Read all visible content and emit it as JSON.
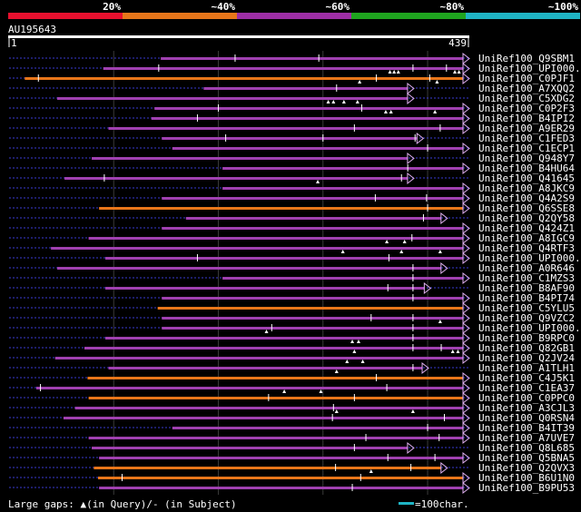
{
  "header": {
    "pct_labels": [
      "20%",
      "~40%",
      "~60%",
      "~80%",
      "~100%"
    ],
    "band_colors": [
      "#e8102e",
      "#e8761a",
      "#9e2ea6",
      "#1fa51f",
      "#1fb4c4"
    ],
    "query_name": "AU195643",
    "ruler_start": "1",
    "ruler_end": "439"
  },
  "colors": {
    "purple": "#a040b0",
    "orange": "#e8761a",
    "dotted": "#3a3ad0",
    "grid": "#3a3a3a",
    "teal": "#1fb4c4"
  },
  "query_length": 439,
  "hits": [
    {
      "label": "UniRef100_Q9SBM1",
      "start": 145,
      "end": 439,
      "color": "purple",
      "lead": 0,
      "tri": [],
      "ticks": [
        216,
        296
      ]
    },
    {
      "label": "UniRef100_UPI000...",
      "start": 90,
      "end": 439,
      "color": "purple",
      "lead": 0,
      "tri": [
        364,
        368,
        372,
        426,
        430
      ],
      "ticks": [
        143,
        386,
        418
      ]
    },
    {
      "label": "UniRef100_C0PJF1",
      "start": 15,
      "end": 439,
      "color": "orange",
      "lead": 0,
      "tri": [
        335,
        409
      ],
      "ticks": [
        28,
        351,
        402
      ]
    },
    {
      "label": "UniRef100_A7XQQ2",
      "start": 186,
      "end": 386,
      "color": "purple",
      "lead": 0,
      "tri": [],
      "ticks": [
        313
      ]
    },
    {
      "label": "UniRef100_C5XDG2",
      "start": 46,
      "end": 386,
      "color": "purple",
      "lead": 0,
      "tri": [
        305,
        310,
        320,
        333
      ],
      "ticks": []
    },
    {
      "label": "UniRef100_C0P2F3",
      "start": 139,
      "end": 439,
      "color": "purple",
      "lead": 0,
      "tri": [
        360,
        365,
        407
      ],
      "ticks": [
        200,
        337
      ]
    },
    {
      "label": "UniRef100_B4IPI2",
      "start": 136,
      "end": 439,
      "color": "purple",
      "lead": 0,
      "tri": [],
      "ticks": [
        180
      ]
    },
    {
      "label": "UniRef100_A9ER29",
      "start": 95,
      "end": 439,
      "color": "purple",
      "lead": 0,
      "tri": [],
      "ticks": [
        330,
        412
      ]
    },
    {
      "label": "UniRef100_C1FED3",
      "start": 146,
      "end": 395,
      "color": "purple",
      "lead": 0,
      "tri": [],
      "ticks": [
        207,
        300,
        388
      ]
    },
    {
      "label": "UniRef100_C1ECP1",
      "start": 156,
      "end": 439,
      "color": "purple",
      "lead": 0,
      "tri": [],
      "ticks": [
        400
      ]
    },
    {
      "label": "UniRef100_Q948Y7",
      "start": 79,
      "end": 386,
      "color": "purple",
      "lead": 0,
      "tri": [],
      "ticks": []
    },
    {
      "label": "UniRef100_B4HU64",
      "start": 204,
      "end": 439,
      "color": "purple",
      "lead": 0,
      "tri": [],
      "ticks": [
        381
      ]
    },
    {
      "label": "UniRef100_Q41645",
      "start": 53,
      "end": 386,
      "color": "purple",
      "lead": 0,
      "tri": [
        295
      ],
      "ticks": [
        91,
        375
      ]
    },
    {
      "label": "UniRef100_A8JKC9",
      "start": 204,
      "end": 439,
      "color": "purple",
      "lead": 0,
      "tri": [],
      "ticks": []
    },
    {
      "label": "UniRef100_Q4A2S9",
      "start": 146,
      "end": 439,
      "color": "purple",
      "lead": 0,
      "tri": [],
      "ticks": [
        350,
        399
      ]
    },
    {
      "label": "UniRef100_Q6SSE8",
      "start": 86,
      "end": 439,
      "color": "orange",
      "lead": 1,
      "lead_end": 146,
      "tri": [],
      "ticks": [
        400
      ]
    },
    {
      "label": "UniRef100_Q2QY58",
      "start": 169,
      "end": 418,
      "color": "purple",
      "lead": 0,
      "tri": [],
      "ticks": [
        396
      ]
    },
    {
      "label": "UniRef100_Q424Z1",
      "start": 146,
      "end": 439,
      "color": "purple",
      "lead": 0,
      "tri": [],
      "ticks": []
    },
    {
      "label": "UniRef100_A8IGC9",
      "start": 76,
      "end": 439,
      "color": "purple",
      "lead": 0,
      "tri": [
        361,
        378
      ],
      "ticks": [
        385
      ]
    },
    {
      "label": "UniRef100_Q4RTF3",
      "start": 40,
      "end": 439,
      "color": "purple",
      "lead": 0,
      "tri": [
        319,
        375,
        412
      ],
      "ticks": []
    },
    {
      "label": "UniRef100_UPI000...",
      "start": 92,
      "end": 439,
      "color": "purple",
      "lead": 0,
      "tri": [],
      "ticks": [
        180,
        363
      ]
    },
    {
      "label": "UniRef100_A0R646",
      "start": 46,
      "end": 418,
      "color": "purple",
      "lead": 0,
      "tri": [],
      "ticks": [
        386
      ]
    },
    {
      "label": "UniRef100_C1MZS3",
      "start": 204,
      "end": 439,
      "color": "purple",
      "lead": 0,
      "tri": [],
      "ticks": [
        386
      ]
    },
    {
      "label": "UniRef100_B8AF90",
      "start": 92,
      "end": 402,
      "color": "purple",
      "lead": 0,
      "tri": [],
      "ticks": [
        362,
        386
      ]
    },
    {
      "label": "UniRef100_B4PI74",
      "start": 146,
      "end": 439,
      "color": "purple",
      "lead": 0,
      "tri": [],
      "ticks": [
        386
      ]
    },
    {
      "label": "UniRef100_C5YLU5",
      "start": 142,
      "end": 439,
      "color": "orange",
      "lead": 0,
      "tri": [],
      "ticks": []
    },
    {
      "label": "UniRef100_Q9VZC2",
      "start": 146,
      "end": 439,
      "color": "purple",
      "lead": 0,
      "tri": [
        412
      ],
      "ticks": [
        346,
        386
      ]
    },
    {
      "label": "UniRef100_UPI000...",
      "start": 146,
      "end": 439,
      "color": "purple",
      "lead": 0,
      "tri": [
        246
      ],
      "ticks": [
        251,
        386
      ]
    },
    {
      "label": "UniRef100_B9RPC0",
      "start": 92,
      "end": 439,
      "color": "purple",
      "lead": 0,
      "tri": [
        328,
        334
      ],
      "ticks": [
        386
      ]
    },
    {
      "label": "UniRef100_Q82GB1",
      "start": 72,
      "end": 439,
      "color": "purple",
      "lead": 0,
      "tri": [
        330,
        424,
        429
      ],
      "ticks": [
        386,
        413
      ]
    },
    {
      "label": "UniRef100_Q2JV24",
      "start": 44,
      "end": 439,
      "color": "purple",
      "lead": 0,
      "tri": [
        323,
        338
      ],
      "ticks": []
    },
    {
      "label": "UniRef100_A1TLH1",
      "start": 95,
      "end": 400,
      "color": "purple",
      "lead": 0,
      "tri": [
        313
      ],
      "ticks": [
        386
      ]
    },
    {
      "label": "UniRef100_C4J5K1",
      "start": 75,
      "end": 439,
      "color": "orange",
      "lead": 0,
      "tri": [],
      "ticks": [
        351
      ]
    },
    {
      "label": "UniRef100_C1EA37",
      "start": 26,
      "end": 439,
      "color": "purple",
      "lead": 0,
      "tri": [
        263,
        298
      ],
      "ticks": [
        30,
        361
      ]
    },
    {
      "label": "UniRef100_C0PPC0",
      "start": 76,
      "end": 439,
      "color": "orange",
      "lead": 0,
      "tri": [],
      "ticks": [
        248,
        330
      ]
    },
    {
      "label": "UniRef100_A3CJL3",
      "start": 63,
      "end": 439,
      "color": "purple",
      "lead": 0,
      "tri": [
        313,
        386
      ],
      "ticks": [
        310
      ]
    },
    {
      "label": "UniRef100_Q0RSN4",
      "start": 52,
      "end": 439,
      "color": "purple",
      "lead": 0,
      "tri": [],
      "ticks": [
        309,
        416
      ]
    },
    {
      "label": "UniRef100_B4IT39",
      "start": 156,
      "end": 439,
      "color": "purple",
      "lead": 0,
      "tri": [],
      "ticks": [
        400
      ]
    },
    {
      "label": "UniRef100_A7UVE7",
      "start": 76,
      "end": 439,
      "color": "purple",
      "lead": 0,
      "tri": [],
      "ticks": [
        341,
        411
      ]
    },
    {
      "label": "UniRef100_Q8L685",
      "start": 79,
      "end": 386,
      "color": "purple",
      "lead": 0,
      "tri": [],
      "ticks": [
        330
      ]
    },
    {
      "label": "UniRef100_Q5BNA5",
      "start": 86,
      "end": 439,
      "color": "purple",
      "lead": 0,
      "tri": [],
      "ticks": [
        362,
        407
      ]
    },
    {
      "label": "UniRef100_Q2QVX3",
      "start": 81,
      "end": 418,
      "color": "orange",
      "lead": 0,
      "tri": [
        346
      ],
      "ticks": [
        312,
        384
      ]
    },
    {
      "label": "UniRef100_B6U1N0",
      "start": 85,
      "end": 439,
      "color": "orange",
      "lead": 0,
      "tri": [],
      "ticks": [
        108,
        336
      ]
    },
    {
      "label": "UniRef100_B9PU53",
      "start": 86,
      "end": 439,
      "color": "purple",
      "lead": 0,
      "tri": [],
      "ticks": [
        328
      ]
    }
  ],
  "footer": {
    "legend_text": "Large gaps: ▲(in Query)/- (in Subject)",
    "scale_text": "=100char."
  }
}
